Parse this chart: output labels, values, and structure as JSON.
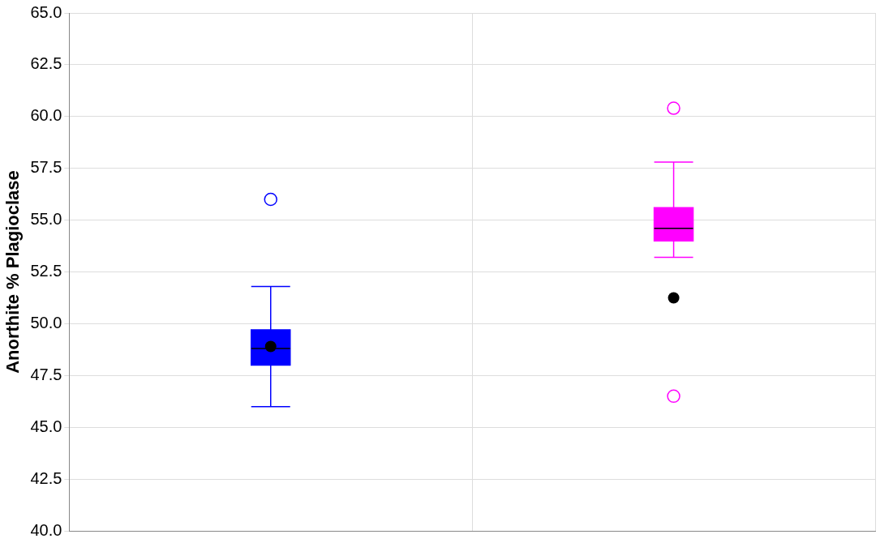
{
  "chart_data": {
    "type": "box",
    "ylabel": "Anorthite % Plagioclase",
    "categories": [
      null,
      null
    ],
    "colors": [
      "#0000ff",
      "#ff00ff"
    ],
    "boxes": [
      {
        "low": 46.0,
        "q1": 48.0,
        "median": 48.8,
        "q3": 49.7,
        "high": 51.8,
        "mean": 48.9,
        "outliers": [
          56.0
        ]
      },
      {
        "low": 53.2,
        "q1": 54.0,
        "median": 54.6,
        "q3": 55.6,
        "high": 57.8,
        "mean": 51.25,
        "outliers": [
          60.4,
          46.5
        ]
      }
    ],
    "ylim": [
      40,
      65
    ],
    "yticks": [
      {
        "value": 40,
        "label": "40.0"
      },
      {
        "value": 42.5,
        "label": "42.5"
      },
      {
        "value": 45,
        "label": "45.0"
      },
      {
        "value": 47.5,
        "label": "47.5"
      },
      {
        "value": 50,
        "label": "50.0"
      },
      {
        "value": 52.5,
        "label": "52.5"
      },
      {
        "value": 55,
        "label": "55.0"
      },
      {
        "value": 57.5,
        "label": "57.5"
      },
      {
        "value": 60,
        "label": "60.0"
      },
      {
        "value": 62.5,
        "label": "62.5"
      },
      {
        "value": 65,
        "label": "65.0"
      }
    ],
    "grid": true,
    "tick_labels": "y",
    "legend": false
  }
}
